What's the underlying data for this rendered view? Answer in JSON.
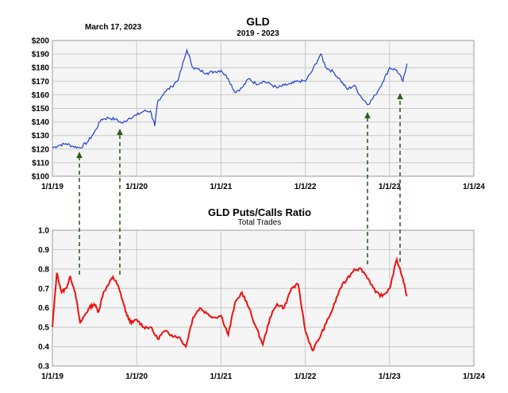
{
  "date_note": "March 17, 2023",
  "colors": {
    "gld_line": "#1f3fcf",
    "ratio_line": "#ee1111",
    "arrow": "#2d5e1e",
    "plot_bg": "#f5f5f5",
    "grid": "#c8c8c8"
  },
  "chart_data": [
    {
      "type": "line",
      "title": "GLD",
      "subtitle": "2019 - 2023",
      "y_tick_labels": [
        "$100",
        "$110",
        "$120",
        "$130",
        "$140",
        "$150",
        "$160",
        "$170",
        "$180",
        "$190",
        "$200"
      ],
      "x_tick_labels": [
        "1/1/19",
        "1/1/20",
        "1/1/21",
        "1/1/22",
        "1/1/23",
        "1/1/24"
      ],
      "ylim": [
        100,
        200
      ],
      "xlim": [
        "2019-01-01",
        "2024-01-01"
      ],
      "grid": true,
      "series": [
        {
          "x": [
            "2019-01-01",
            "2019-02-01",
            "2019-03-01",
            "2019-04-01",
            "2019-05-01",
            "2019-06-01",
            "2019-07-01",
            "2019-08-01",
            "2019-09-01",
            "2019-10-01",
            "2019-11-01",
            "2019-12-01",
            "2020-01-01",
            "2020-02-01",
            "2020-03-01",
            "2020-03-20",
            "2020-04-01",
            "2020-05-01",
            "2020-06-01",
            "2020-07-01",
            "2020-08-06",
            "2020-09-01",
            "2020-10-01",
            "2020-11-01",
            "2020-12-01",
            "2021-01-01",
            "2021-02-01",
            "2021-03-01",
            "2021-04-01",
            "2021-05-01",
            "2021-06-01",
            "2021-07-01",
            "2021-08-01",
            "2021-09-01",
            "2021-10-01",
            "2021-11-01",
            "2021-12-01",
            "2022-01-01",
            "2022-02-01",
            "2022-03-08",
            "2022-04-01",
            "2022-05-01",
            "2022-06-01",
            "2022-07-01",
            "2022-08-01",
            "2022-09-01",
            "2022-10-01",
            "2022-11-01",
            "2022-12-01",
            "2023-01-01",
            "2023-02-01",
            "2023-02-28",
            "2023-03-17"
          ],
          "values": [
            121,
            123,
            124,
            122,
            121,
            125,
            132,
            142,
            143,
            142,
            139,
            143,
            145,
            148,
            148,
            137,
            155,
            162,
            166,
            172,
            193,
            180,
            178,
            176,
            177,
            178,
            172,
            162,
            165,
            172,
            168,
            170,
            168,
            165,
            167,
            168,
            170,
            170,
            178,
            190,
            180,
            177,
            171,
            164,
            167,
            158,
            153,
            160,
            169,
            180,
            178,
            170,
            183
          ]
        }
      ]
    },
    {
      "type": "line",
      "title": "GLD Puts/Calls Ratio",
      "subtitle": "Total Trades",
      "y_tick_labels": [
        "0.3",
        "0.4",
        "0.5",
        "0.6",
        "0.7",
        "0.8",
        "0.9",
        "1.0"
      ],
      "x_tick_labels": [
        "1/1/19",
        "1/1/20",
        "1/1/21",
        "1/1/22",
        "1/1/23",
        "1/1/24"
      ],
      "ylim": [
        0.3,
        1.0
      ],
      "xlim": [
        "2019-01-01",
        "2024-01-01"
      ],
      "grid": true,
      "series": [
        {
          "x": [
            "2019-01-01",
            "2019-01-20",
            "2019-02-10",
            "2019-03-01",
            "2019-03-20",
            "2019-04-10",
            "2019-05-01",
            "2019-05-20",
            "2019-06-10",
            "2019-07-01",
            "2019-07-20",
            "2019-08-10",
            "2019-09-01",
            "2019-09-20",
            "2019-10-10",
            "2019-11-01",
            "2019-11-20",
            "2019-12-10",
            "2020-01-01",
            "2020-02-01",
            "2020-03-01",
            "2020-04-01",
            "2020-05-01",
            "2020-06-01",
            "2020-07-01",
            "2020-08-01",
            "2020-09-01",
            "2020-10-01",
            "2020-11-01",
            "2020-12-01",
            "2021-01-01",
            "2021-02-01",
            "2021-03-01",
            "2021-04-01",
            "2021-05-01",
            "2021-06-01",
            "2021-07-01",
            "2021-08-01",
            "2021-09-01",
            "2021-10-01",
            "2021-11-01",
            "2021-12-01",
            "2022-01-01",
            "2022-02-01",
            "2022-03-01",
            "2022-04-01",
            "2022-05-01",
            "2022-06-01",
            "2022-07-01",
            "2022-08-01",
            "2022-09-01",
            "2022-10-01",
            "2022-11-01",
            "2022-12-01",
            "2023-01-01",
            "2023-02-01",
            "2023-02-28",
            "2023-03-17"
          ],
          "values": [
            0.5,
            0.78,
            0.68,
            0.7,
            0.76,
            0.68,
            0.52,
            0.56,
            0.6,
            0.62,
            0.58,
            0.68,
            0.72,
            0.76,
            0.72,
            0.64,
            0.56,
            0.52,
            0.54,
            0.5,
            0.5,
            0.44,
            0.48,
            0.46,
            0.45,
            0.4,
            0.55,
            0.6,
            0.57,
            0.55,
            0.56,
            0.46,
            0.62,
            0.68,
            0.6,
            0.5,
            0.41,
            0.55,
            0.62,
            0.6,
            0.7,
            0.72,
            0.48,
            0.38,
            0.44,
            0.52,
            0.6,
            0.7,
            0.75,
            0.8,
            0.8,
            0.75,
            0.68,
            0.66,
            0.7,
            0.85,
            0.75,
            0.66
          ]
        }
      ]
    }
  ]
}
